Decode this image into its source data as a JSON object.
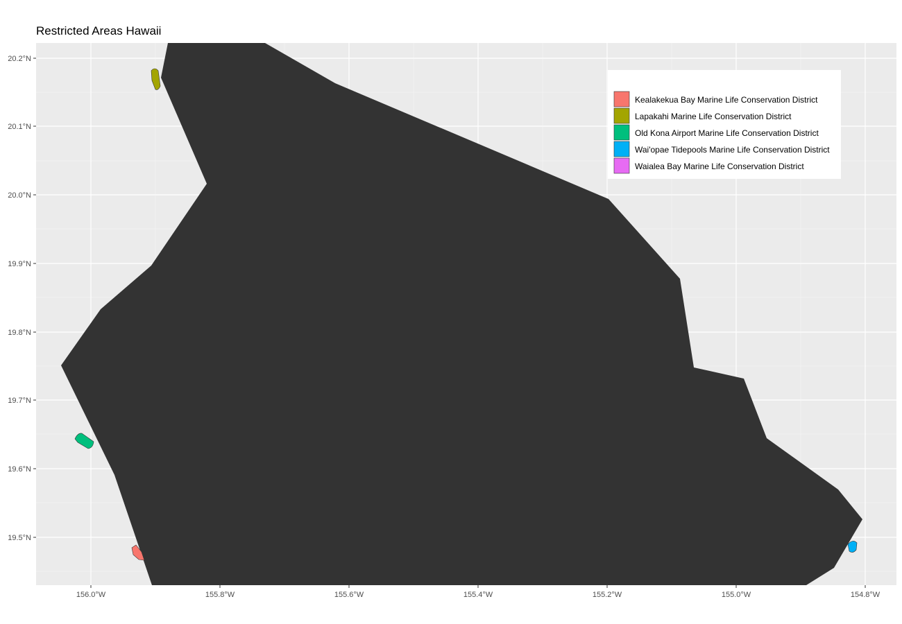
{
  "title": "Restricted Areas Hawaii",
  "colors": {
    "panel_background": "#ebebeb",
    "grid": "#ffffff",
    "land": "#333333"
  },
  "axes": {
    "x_ticks": [
      "156.0°W",
      "155.8°W",
      "155.6°W",
      "155.4°W",
      "155.2°W",
      "155.0°W",
      "154.8°W"
    ],
    "y_ticks": [
      "20.2°N",
      "20.1°N",
      "20.0°N",
      "19.9°N",
      "19.8°N",
      "19.7°N",
      "19.6°N",
      "19.5°N"
    ]
  },
  "legend": {
    "placement": "top-right",
    "items": [
      {
        "label": "Kealakekua Bay Marine Life Conservation District",
        "color": "#f8766d"
      },
      {
        "label": "Lapakahi Marine Life Conservation District",
        "color": "#a3a500"
      },
      {
        "label": "Old Kona Airport Marine Life Conservation District",
        "color": "#00bf7d"
      },
      {
        "label": "Wai'opae Tidepools Marine Life Conservation District",
        "color": "#00b0f6"
      },
      {
        "label": "Waialea Bay Marine Life Conservation District",
        "color": "#e76bf3"
      }
    ]
  }
}
